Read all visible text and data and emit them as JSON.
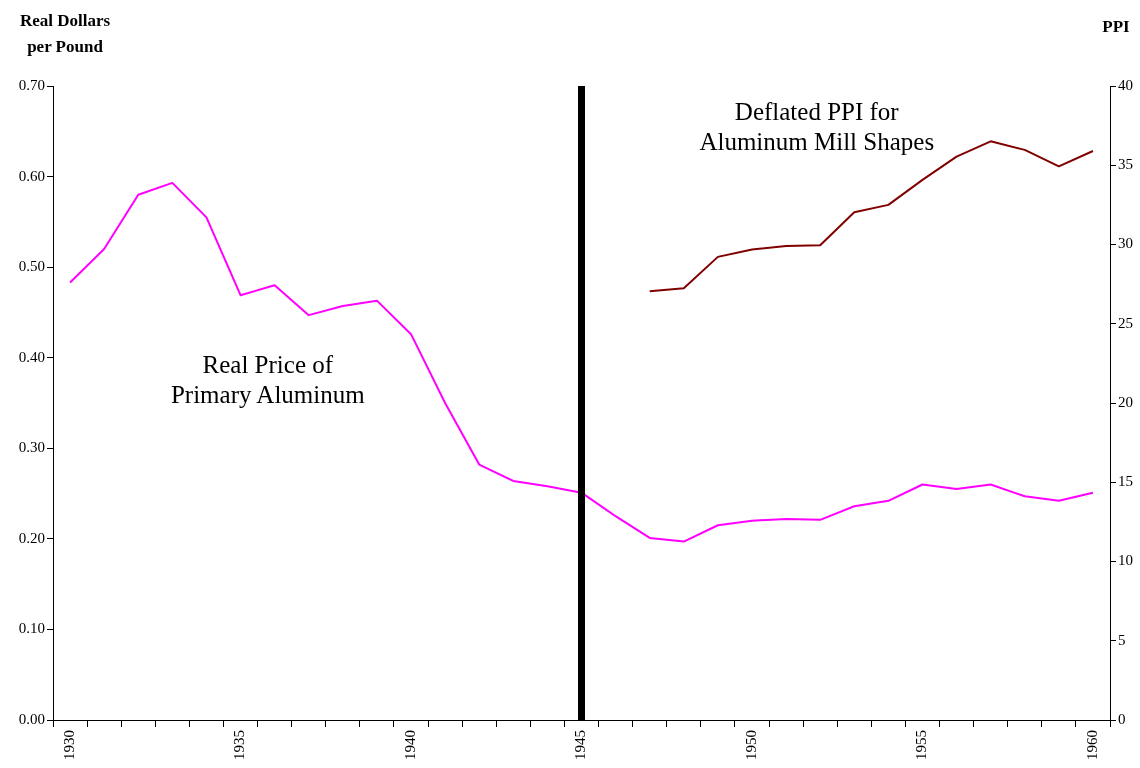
{
  "chart_data": {
    "type": "line",
    "ylabel": "Real Dollars\nper Pound",
    "y2label": "PPI",
    "categories": [
      "1930",
      null,
      null,
      null,
      null,
      "1935",
      null,
      null,
      null,
      null,
      "1940",
      null,
      null,
      null,
      null,
      "1945",
      null,
      null,
      null,
      null,
      "1950",
      null,
      null,
      null,
      null,
      "1955",
      null,
      null,
      null,
      null,
      "1960"
    ],
    "series": [
      {
        "name": "Real Price of\nPrimary Aluminum",
        "color": "#ff00ff",
        "values": [
          0.483,
          0.52,
          0.58,
          0.593,
          0.555,
          0.469,
          0.48,
          0.447,
          0.457,
          0.463,
          0.426,
          0.35,
          0.282,
          0.264,
          0.258,
          0.251,
          0.225,
          0.201,
          0.197,
          0.215,
          0.22,
          0.222,
          0.221,
          0.236,
          0.242,
          0.26,
          0.255,
          0.26,
          0.247,
          0.242,
          0.251
        ]
      },
      {
        "name": "Deflated PPI for\nAluminum Mill Shapes",
        "color": "#800000",
        "axis": "y2",
        "values": [
          null,
          null,
          null,
          null,
          null,
          null,
          null,
          null,
          null,
          null,
          null,
          null,
          null,
          null,
          null,
          null,
          null,
          27.05,
          27.24,
          29.22,
          29.69,
          29.91,
          29.95,
          32.03,
          32.5,
          34.08,
          35.54,
          36.51,
          35.97,
          34.93,
          35.9
        ]
      }
    ],
    "ylim": [
      0,
      0.7
    ],
    "yticks": [
      {
        "value": 0,
        "label": "0.00"
      },
      {
        "value": 0.1,
        "label": "0.10"
      },
      {
        "value": 0.2,
        "label": "0.20"
      },
      {
        "value": 0.3,
        "label": "0.30"
      },
      {
        "value": 0.4,
        "label": "0.40"
      },
      {
        "value": 0.5,
        "label": "0.50"
      },
      {
        "value": 0.6,
        "label": "0.60"
      },
      {
        "value": 0.7,
        "label": "0.70"
      }
    ],
    "y2lim": [
      0,
      40
    ],
    "y2ticks": [
      0,
      5,
      10,
      15,
      20,
      25,
      30,
      35,
      40
    ],
    "ref_lines": [
      {
        "axis": "x",
        "value": "1945",
        "color": "#000000"
      }
    ],
    "grid": false,
    "legend": false,
    "marker": "none",
    "line_style": "solid"
  }
}
